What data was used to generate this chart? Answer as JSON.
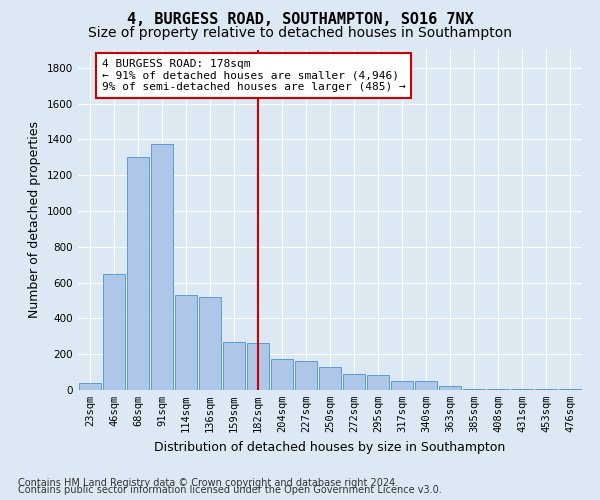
{
  "title": "4, BURGESS ROAD, SOUTHAMPTON, SO16 7NX",
  "subtitle": "Size of property relative to detached houses in Southampton",
  "xlabel": "Distribution of detached houses by size in Southampton",
  "ylabel": "Number of detached properties",
  "footer_line1": "Contains HM Land Registry data © Crown copyright and database right 2024.",
  "footer_line2": "Contains public sector information licensed under the Open Government Licence v3.0.",
  "categories": [
    "23sqm",
    "46sqm",
    "68sqm",
    "91sqm",
    "114sqm",
    "136sqm",
    "159sqm",
    "182sqm",
    "204sqm",
    "227sqm",
    "250sqm",
    "272sqm",
    "295sqm",
    "317sqm",
    "340sqm",
    "363sqm",
    "385sqm",
    "408sqm",
    "431sqm",
    "453sqm",
    "476sqm"
  ],
  "values": [
    40,
    648,
    1300,
    1375,
    530,
    520,
    270,
    265,
    175,
    160,
    130,
    90,
    85,
    50,
    50,
    25,
    5,
    5,
    5,
    5,
    5
  ],
  "bar_color": "#aec6e8",
  "bar_edge_color": "#5b9bd5",
  "highlight_index": 7,
  "highlight_line_color": "#cc0000",
  "annotation_text": "4 BURGESS ROAD: 178sqm\n← 91% of detached houses are smaller (4,946)\n9% of semi-detached houses are larger (485) →",
  "annotation_box_color": "#cc0000",
  "annotation_text_color": "#000000",
  "ylim": [
    0,
    1900
  ],
  "yticks": [
    0,
    200,
    400,
    600,
    800,
    1000,
    1200,
    1400,
    1600,
    1800
  ],
  "background_color": "#dce9f5",
  "plot_background_color": "#dce9f5",
  "grid_color": "#ffffff",
  "title_fontsize": 11,
  "subtitle_fontsize": 10,
  "xlabel_fontsize": 9,
  "ylabel_fontsize": 9,
  "tick_fontsize": 7.5,
  "footer_fontsize": 7,
  "ann_fontsize": 8
}
